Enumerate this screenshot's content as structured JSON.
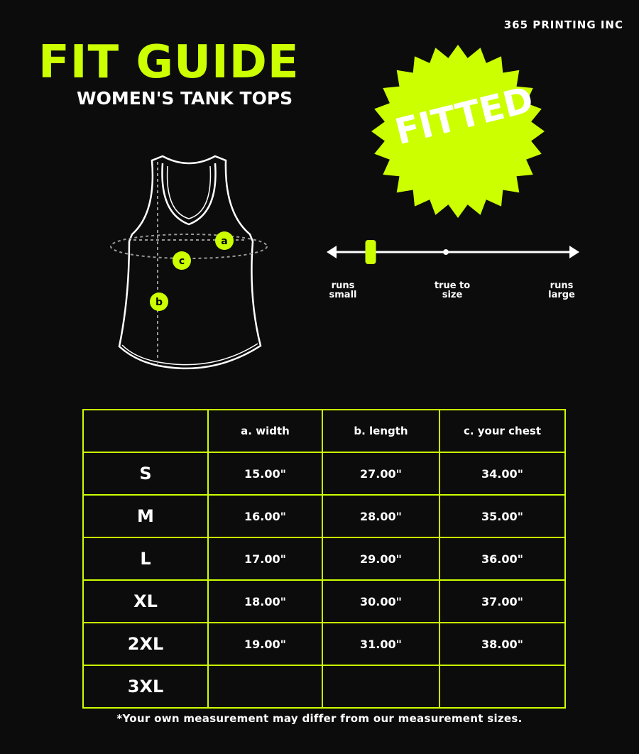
{
  "brand": "365 PRINTING INC",
  "title": "FIT GUIDE",
  "subtitle": "WOMEN'S TANK TOPS",
  "fit_badge": "FITTED",
  "accent_color": "#ccff00",
  "diagram_labels": {
    "a": "a",
    "b": "b",
    "c": "c"
  },
  "fit_scale": {
    "labels": [
      "runs small",
      "true to size",
      "runs large"
    ],
    "position_fraction": 0.17
  },
  "table": {
    "headers": [
      "",
      "a. width",
      "b. length",
      "c. your chest"
    ],
    "rows": [
      [
        "S",
        "15.00\"",
        "27.00\"",
        "34.00\""
      ],
      [
        "M",
        "16.00\"",
        "28.00\"",
        "35.00\""
      ],
      [
        "L",
        "17.00\"",
        "29.00\"",
        "36.00\""
      ],
      [
        "XL",
        "18.00\"",
        "30.00\"",
        "37.00\""
      ],
      [
        "2XL",
        "19.00\"",
        "31.00\"",
        "38.00\""
      ],
      [
        "3XL",
        "",
        "",
        ""
      ]
    ]
  },
  "note": "*Your own measurement may differ from our measurement sizes."
}
